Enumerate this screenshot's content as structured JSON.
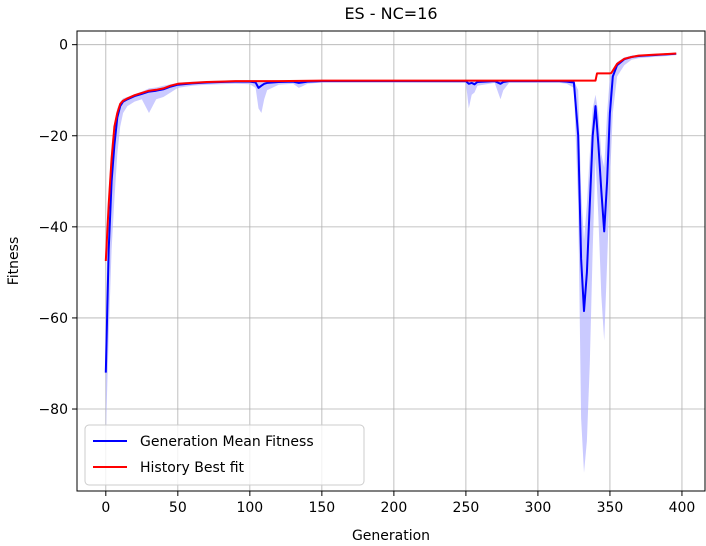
{
  "chart_data": {
    "type": "line",
    "title": "ES - NC=16",
    "xlabel": "Generation",
    "ylabel": "Fitness",
    "xlim": [
      -20,
      416
    ],
    "ylim": [
      -98,
      3
    ],
    "xticks": [
      0,
      50,
      100,
      150,
      200,
      250,
      300,
      350,
      400
    ],
    "yticks": [
      0,
      -20,
      -40,
      -60,
      -80
    ],
    "xtick_labels": [
      "0",
      "50",
      "100",
      "150",
      "200",
      "250",
      "300",
      "350",
      "400"
    ],
    "ytick_labels": [
      "0",
      "−20",
      "−40",
      "−60",
      "−80"
    ],
    "grid": true,
    "legend_position": "lower-left",
    "series": [
      {
        "name": "Generation Mean Fitness",
        "color": "#0000ff",
        "band_color": "#b3b3ff",
        "x": [
          0,
          2,
          4,
          6,
          8,
          10,
          12,
          15,
          20,
          25,
          30,
          35,
          40,
          45,
          50,
          60,
          70,
          80,
          90,
          100,
          104,
          106,
          108,
          110,
          112,
          120,
          130,
          134,
          136,
          140,
          150,
          200,
          250,
          252,
          254,
          256,
          258,
          270,
          274,
          276,
          280,
          300,
          315,
          320,
          325,
          328,
          330,
          332,
          334,
          336,
          338,
          340,
          342,
          344,
          346,
          348,
          350,
          352,
          355,
          360,
          365,
          370,
          380,
          390,
          396
        ],
        "values": [
          -72,
          -45,
          -30,
          -22,
          -16,
          -13.5,
          -12.5,
          -12,
          -11.3,
          -10.8,
          -10.3,
          -10.1,
          -9.8,
          -9.2,
          -8.8,
          -8.5,
          -8.3,
          -8.2,
          -8.1,
          -8.1,
          -8.3,
          -9.5,
          -9.0,
          -8.6,
          -8.4,
          -8.2,
          -8.1,
          -8.4,
          -8.3,
          -8.1,
          -8.0,
          -8.0,
          -8.0,
          -8.6,
          -8.4,
          -8.7,
          -8.2,
          -8.0,
          -8.6,
          -8.2,
          -8.0,
          -8.0,
          -8.0,
          -8.1,
          -8.3,
          -20,
          -47,
          -58.5,
          -50,
          -35,
          -20,
          -13.5,
          -22,
          -32,
          -41,
          -30,
          -15,
          -7,
          -4.5,
          -3.2,
          -2.7,
          -2.5,
          -2.3,
          -2.1,
          -2.0
        ],
        "upper": [
          -60,
          -32,
          -22,
          -17,
          -14,
          -12.5,
          -11.8,
          -11.5,
          -10.9,
          -10.3,
          -9.6,
          -9.4,
          -9.0,
          -8.7,
          -8.4,
          -8.1,
          -8.0,
          -7.9,
          -7.8,
          -7.8,
          -7.8,
          -8.0,
          -7.9,
          -7.9,
          -7.9,
          -7.8,
          -7.8,
          -7.9,
          -7.9,
          -7.8,
          -7.8,
          -7.8,
          -7.8,
          -7.9,
          -7.9,
          -8.0,
          -7.9,
          -7.8,
          -7.9,
          -7.9,
          -7.8,
          -7.8,
          -7.8,
          -7.8,
          -7.9,
          -10,
          -32,
          -43,
          -35,
          -24,
          -14,
          -11,
          -15,
          -24,
          -27,
          -15,
          -7,
          -5.5,
          -3.8,
          -2.8,
          -2.4,
          -2.2,
          -2.1,
          -1.9,
          -1.8
        ],
        "lower": [
          -86,
          -64,
          -45,
          -34,
          -24,
          -18,
          -15,
          -13.5,
          -12.5,
          -12,
          -15,
          -12,
          -11.5,
          -10.5,
          -9.5,
          -9,
          -8.8,
          -8.7,
          -8.6,
          -8.7,
          -9.5,
          -14,
          -15,
          -12,
          -10,
          -8.8,
          -8.6,
          -9.5,
          -9.2,
          -8.6,
          -8.3,
          -8.3,
          -8.4,
          -14,
          -11,
          -10.5,
          -9.0,
          -8.4,
          -12,
          -10,
          -8.4,
          -8.4,
          -8.4,
          -8.6,
          -9.5,
          -35,
          -82,
          -94,
          -87,
          -70,
          -45,
          -25,
          -38,
          -55,
          -65,
          -48,
          -30,
          -15,
          -7,
          -4.5,
          -3.3,
          -3.0,
          -2.7,
          -2.5,
          -2.3
        ]
      },
      {
        "name": "History Best fit",
        "color": "#ff0000",
        "x": [
          0,
          2,
          4,
          6,
          8,
          10,
          12,
          15,
          20,
          25,
          30,
          35,
          40,
          45,
          50,
          60,
          70,
          80,
          90,
          100,
          120,
          150,
          200,
          250,
          300,
          340,
          341,
          350,
          351,
          355,
          360,
          365,
          370,
          380,
          390,
          396
        ],
        "values": [
          -47.5,
          -35,
          -25,
          -18,
          -15,
          -13,
          -12.3,
          -11.8,
          -11.1,
          -10.6,
          -10.1,
          -9.9,
          -9.6,
          -9.0,
          -8.6,
          -8.4,
          -8.2,
          -8.1,
          -8.0,
          -8.0,
          -8.0,
          -7.9,
          -7.9,
          -7.9,
          -7.9,
          -7.9,
          -6.3,
          -6.3,
          -6.2,
          -4.2,
          -3.1,
          -2.7,
          -2.4,
          -2.2,
          -2.05,
          -1.95
        ]
      }
    ]
  }
}
